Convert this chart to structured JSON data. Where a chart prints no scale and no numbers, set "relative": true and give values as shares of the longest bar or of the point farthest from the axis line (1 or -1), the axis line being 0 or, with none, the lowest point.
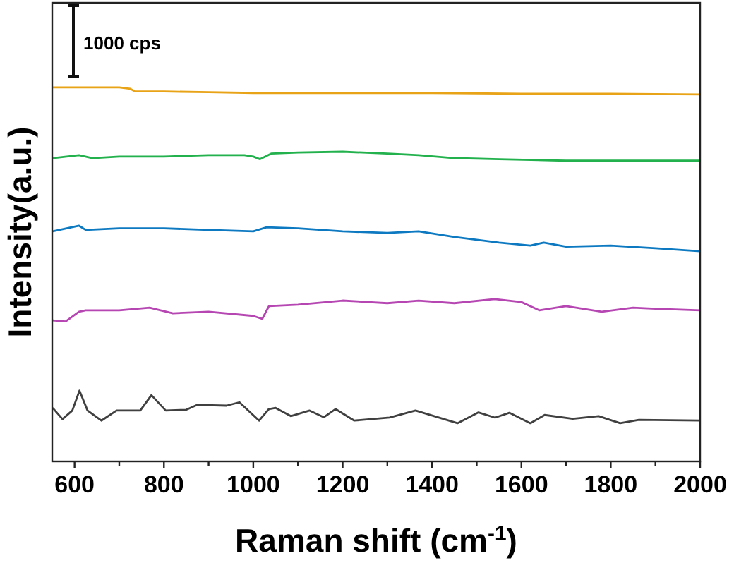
{
  "chart_data": {
    "type": "line",
    "relative": true,
    "xlabel": "Raman shift (cm$^{-1}$)",
    "ylabel": "Intensity(a.u.)",
    "annotations": [
      "1000 cps"
    ],
    "xlim": [
      550,
      2000
    ],
    "xticks": [
      600,
      {
        "value": 700,
        "label": null
      },
      800,
      {
        "value": 900,
        "label": null
      },
      1000,
      {
        "value": 1100,
        "label": null
      },
      1200,
      {
        "value": 1300,
        "label": null
      },
      1400,
      {
        "value": 1500,
        "label": null
      },
      1600,
      {
        "value": 1700,
        "label": null
      },
      1800,
      {
        "value": 1900,
        "label": null
      },
      2000
    ],
    "tick_labels": "x",
    "grid": false,
    "marker": "none",
    "line_style": "solid",
    "series": [
      {
        "color": "#e8a317",
        "x": [
          551,
          700,
          725,
          735,
          800,
          900,
          1000,
          1200,
          1400,
          1600,
          1800,
          2000
        ],
        "values": [
          1.0,
          1.0,
          0.996,
          0.989,
          0.989,
          0.987,
          0.985,
          0.985,
          0.985,
          0.983,
          0.983,
          0.981
        ]
      },
      {
        "color": "#22b14c",
        "x": [
          551,
          610,
          640,
          700,
          800,
          900,
          980,
          1000,
          1015,
          1040,
          1100,
          1200,
          1300,
          1370,
          1450,
          1550,
          1700,
          1850,
          2000
        ],
        "values": [
          0.811,
          0.819,
          0.811,
          0.815,
          0.815,
          0.819,
          0.819,
          0.815,
          0.808,
          0.823,
          0.826,
          0.828,
          0.823,
          0.819,
          0.811,
          0.808,
          0.804,
          0.804,
          0.804
        ]
      },
      {
        "color": "#0c79c1",
        "x": [
          551,
          610,
          625,
          700,
          800,
          900,
          1000,
          1030,
          1100,
          1200,
          1300,
          1370,
          1450,
          1550,
          1620,
          1650,
          1700,
          1800,
          1900,
          2000
        ],
        "values": [
          0.615,
          0.63,
          0.619,
          0.623,
          0.623,
          0.619,
          0.615,
          0.626,
          0.623,
          0.615,
          0.611,
          0.615,
          0.6,
          0.585,
          0.577,
          0.585,
          0.574,
          0.577,
          0.57,
          0.562
        ]
      },
      {
        "color": "#b546b2",
        "x": [
          551,
          580,
          610,
          625,
          700,
          768,
          820,
          900,
          1000,
          1020,
          1035,
          1100,
          1200,
          1300,
          1370,
          1450,
          1540,
          1600,
          1640,
          1700,
          1780,
          1850,
          1900,
          2000
        ],
        "values": [
          0.377,
          0.374,
          0.4,
          0.404,
          0.404,
          0.411,
          0.396,
          0.4,
          0.389,
          0.381,
          0.415,
          0.419,
          0.43,
          0.423,
          0.43,
          0.423,
          0.434,
          0.426,
          0.404,
          0.415,
          0.4,
          0.411,
          0.408,
          0.404
        ]
      },
      {
        "color": "#404040",
        "x": [
          551,
          573,
          595,
          611,
          629,
          660,
          694,
          747,
          772,
          804,
          850,
          874,
          940,
          969,
          1013,
          1035,
          1050,
          1084,
          1126,
          1158,
          1184,
          1226,
          1305,
          1363,
          1457,
          1504,
          1541,
          1573,
          1620,
          1652,
          1715,
          1773,
          1821,
          1863,
          2000
        ],
        "values": [
          0.143,
          0.113,
          0.136,
          0.189,
          0.136,
          0.109,
          0.136,
          0.136,
          0.177,
          0.136,
          0.138,
          0.151,
          0.149,
          0.158,
          0.109,
          0.14,
          0.143,
          0.121,
          0.136,
          0.118,
          0.14,
          0.109,
          0.117,
          0.136,
          0.102,
          0.131,
          0.117,
          0.13,
          0.102,
          0.124,
          0.114,
          0.121,
          0.102,
          0.111,
          0.109
        ]
      }
    ]
  }
}
